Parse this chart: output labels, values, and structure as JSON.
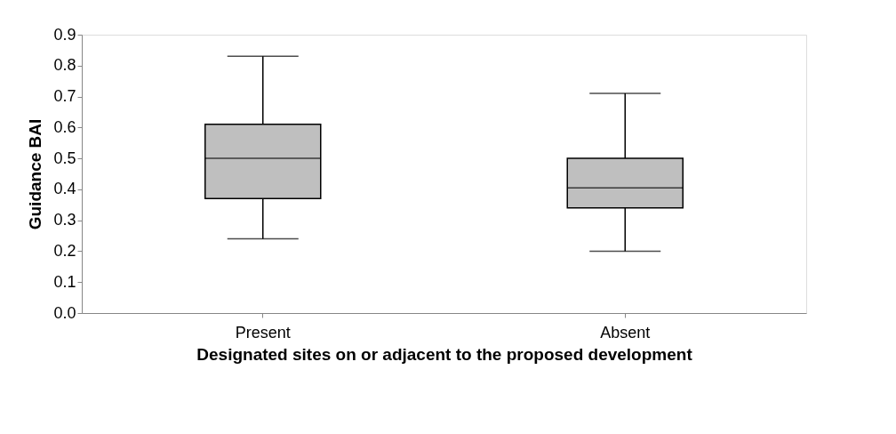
{
  "chart_data": {
    "type": "box",
    "xlabel": "Designated sites on or adjacent to the proposed development",
    "ylabel": "Guidance BAI",
    "categories": [
      "Present",
      "Absent"
    ],
    "boxes": [
      {
        "low": 0.24,
        "q1": 0.37,
        "median": 0.5,
        "q3": 0.61,
        "high": 0.83
      },
      {
        "low": 0.2,
        "q1": 0.34,
        "median": 0.405,
        "q3": 0.5,
        "high": 0.71
      }
    ],
    "color": "#bfbfbf",
    "ylim": [
      0,
      0.9
    ],
    "yticks": [
      {
        "value": 0,
        "label": "0.0"
      },
      0.1,
      0.2,
      0.3,
      0.4,
      0.5,
      0.6,
      0.7,
      0.8,
      0.9
    ],
    "grid": false
  }
}
